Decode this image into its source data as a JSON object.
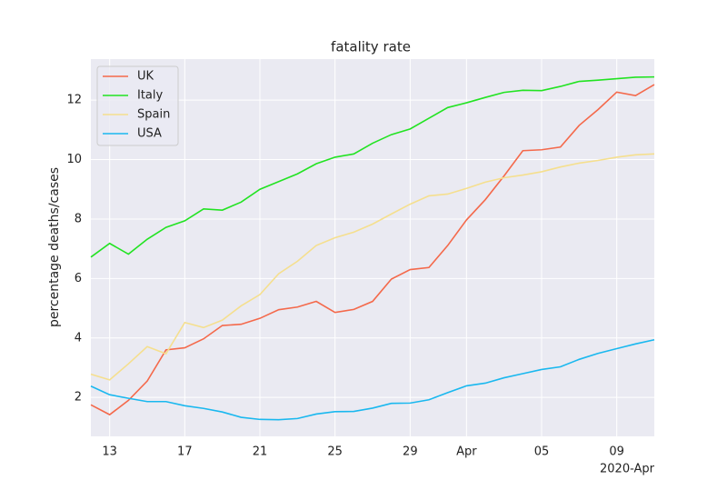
{
  "chart_data": {
    "type": "line",
    "title": "fatality rate",
    "y_label": "percentage deaths/cases",
    "x_offset_label": "2020-Apr",
    "x": [
      "2020-03-12",
      "2020-03-13",
      "2020-03-14",
      "2020-03-15",
      "2020-03-16",
      "2020-03-17",
      "2020-03-18",
      "2020-03-19",
      "2020-03-20",
      "2020-03-21",
      "2020-03-22",
      "2020-03-23",
      "2020-03-24",
      "2020-03-25",
      "2020-03-26",
      "2020-03-27",
      "2020-03-28",
      "2020-03-29",
      "2020-03-30",
      "2020-03-31",
      "2020-04-01",
      "2020-04-02",
      "2020-04-03",
      "2020-04-04",
      "2020-04-05",
      "2020-04-06",
      "2020-04-07",
      "2020-04-08",
      "2020-04-09",
      "2020-04-10",
      "2020-04-11"
    ],
    "series": [
      {
        "name": "UK",
        "color": "#f4694b",
        "values": [
          1.75,
          1.42,
          1.9,
          2.55,
          3.6,
          3.67,
          3.97,
          4.42,
          4.46,
          4.66,
          4.95,
          5.04,
          5.23,
          4.86,
          4.96,
          5.23,
          5.98,
          6.3,
          6.37,
          7.11,
          7.97,
          8.65,
          9.45,
          10.3,
          10.33,
          10.42,
          11.15,
          11.68,
          12.27,
          12.15,
          12.52
        ]
      },
      {
        "name": "Italy",
        "color": "#22e322",
        "values": [
          6.72,
          7.18,
          6.82,
          7.32,
          7.72,
          7.94,
          8.34,
          8.3,
          8.57,
          9.0,
          9.26,
          9.52,
          9.86,
          10.08,
          10.19,
          10.55,
          10.84,
          11.03,
          11.39,
          11.75,
          11.91,
          12.09,
          12.26,
          12.33,
          12.32,
          12.46,
          12.63,
          12.67,
          12.72,
          12.77,
          12.78
        ]
      },
      {
        "name": "Spain",
        "color": "#f5df8e",
        "values": [
          2.78,
          2.59,
          3.13,
          3.71,
          3.47,
          4.52,
          4.35,
          4.6,
          5.08,
          5.46,
          6.16,
          6.58,
          7.11,
          7.37,
          7.56,
          7.83,
          8.17,
          8.5,
          8.78,
          8.84,
          9.03,
          9.24,
          9.39,
          9.48,
          9.59,
          9.75,
          9.88,
          9.97,
          10.08,
          10.16,
          10.19
        ]
      },
      {
        "name": "USA",
        "color": "#1ab8ef",
        "values": [
          2.38,
          2.09,
          1.97,
          1.86,
          1.86,
          1.72,
          1.63,
          1.51,
          1.33,
          1.26,
          1.25,
          1.29,
          1.44,
          1.52,
          1.53,
          1.64,
          1.8,
          1.81,
          1.92,
          2.16,
          2.39,
          2.48,
          2.66,
          2.8,
          2.94,
          3.03,
          3.28,
          3.48,
          3.64,
          3.8,
          3.94
        ]
      }
    ],
    "xlim": [
      "2020-03-12",
      "2020-04-11"
    ],
    "xticks": [
      {
        "value": "2020-03-13",
        "label": "13"
      },
      {
        "value": "2020-03-17",
        "label": "17"
      },
      {
        "value": "2020-03-21",
        "label": "21"
      },
      {
        "value": "2020-03-25",
        "label": "25"
      },
      {
        "value": "2020-03-29",
        "label": "29"
      },
      {
        "value": "2020-04-01",
        "label": "Apr"
      },
      {
        "value": "2020-04-05",
        "label": "05"
      },
      {
        "value": "2020-04-09",
        "label": "09"
      }
    ],
    "ylim": [
      0.69,
      13.38
    ],
    "yticks": [
      2,
      4,
      6,
      8,
      10,
      12
    ],
    "grid": true,
    "legend": "upper left",
    "background": "#eaeaf2"
  }
}
